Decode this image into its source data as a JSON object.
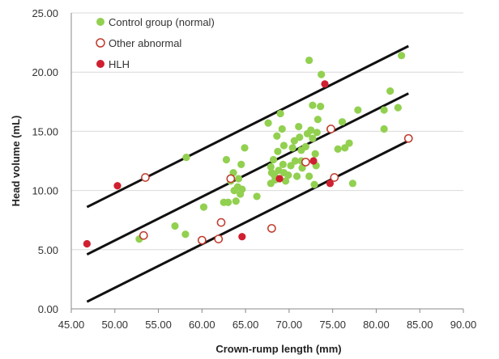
{
  "chart_data": {
    "type": "scatter",
    "title": "",
    "xlabel": "Crown-rump length (mm)",
    "ylabel": "Head volume (mL)",
    "xlim": [
      45,
      90
    ],
    "ylim": [
      0,
      25
    ],
    "x_ticks": [
      "45.00",
      "50.00",
      "55.00",
      "60.00",
      "65.00",
      "70.00",
      "75.00",
      "80.00",
      "85.00",
      "90.00"
    ],
    "y_ticks": [
      "0.00",
      "5.00",
      "10.00",
      "15.00",
      "20.00",
      "25.00"
    ],
    "grid": "horizontal",
    "legend_position": "top-left",
    "series": [
      {
        "name": "Control group (normal)",
        "marker": "filled-circle",
        "color": "#92d050",
        "points": [
          [
            52.8,
            5.9
          ],
          [
            56.9,
            7.0
          ],
          [
            58.1,
            6.3
          ],
          [
            58.2,
            12.8
          ],
          [
            60.2,
            8.6
          ],
          [
            62.5,
            9.0
          ],
          [
            62.8,
            12.6
          ],
          [
            63.0,
            9.0
          ],
          [
            63.3,
            10.8
          ],
          [
            63.6,
            11.5
          ],
          [
            63.7,
            10.0
          ],
          [
            63.9,
            9.1
          ],
          [
            64.1,
            10.3
          ],
          [
            64.2,
            11.0
          ],
          [
            64.4,
            9.7
          ],
          [
            64.6,
            10.1
          ],
          [
            64.5,
            12.2
          ],
          [
            64.9,
            13.6
          ],
          [
            66.3,
            9.5
          ],
          [
            67.6,
            15.7
          ],
          [
            67.9,
            12.0
          ],
          [
            67.9,
            10.6
          ],
          [
            68.0,
            11.5
          ],
          [
            68.2,
            12.6
          ],
          [
            68.3,
            11.3
          ],
          [
            68.4,
            10.9
          ],
          [
            68.6,
            14.6
          ],
          [
            68.7,
            13.3
          ],
          [
            68.8,
            11.7
          ],
          [
            69.0,
            16.5
          ],
          [
            69.2,
            15.2
          ],
          [
            69.3,
            12.2
          ],
          [
            69.4,
            11.5
          ],
          [
            69.4,
            13.8
          ],
          [
            69.6,
            10.8
          ],
          [
            69.9,
            11.3
          ],
          [
            70.2,
            12.1
          ],
          [
            70.4,
            13.6
          ],
          [
            70.6,
            14.2
          ],
          [
            70.7,
            12.5
          ],
          [
            70.9,
            11.2
          ],
          [
            71.1,
            15.4
          ],
          [
            71.2,
            14.5
          ],
          [
            71.4,
            13.4
          ],
          [
            71.4,
            12.5
          ],
          [
            71.5,
            11.9
          ],
          [
            71.9,
            13.7
          ],
          [
            72.1,
            14.8
          ],
          [
            72.3,
            21.0
          ],
          [
            72.3,
            11.2
          ],
          [
            72.5,
            15.1
          ],
          [
            72.7,
            14.4
          ],
          [
            72.7,
            17.2
          ],
          [
            72.9,
            10.5
          ],
          [
            73.0,
            13.1
          ],
          [
            73.1,
            12.1
          ],
          [
            73.2,
            14.9
          ],
          [
            73.3,
            16.0
          ],
          [
            73.6,
            17.1
          ],
          [
            73.7,
            19.8
          ],
          [
            74.7,
            15.2
          ],
          [
            75.6,
            13.5
          ],
          [
            76.1,
            15.8
          ],
          [
            76.4,
            13.6
          ],
          [
            76.9,
            14.0
          ],
          [
            77.3,
            10.6
          ],
          [
            77.9,
            16.8
          ],
          [
            80.9,
            15.2
          ],
          [
            80.9,
            16.8
          ],
          [
            81.6,
            18.4
          ],
          [
            82.5,
            17.0
          ],
          [
            82.9,
            21.4
          ]
        ]
      },
      {
        "name": "Other abnormal",
        "marker": "open-circle",
        "color": "#c0392b",
        "points": [
          [
            53.3,
            6.2
          ],
          [
            53.5,
            11.1
          ],
          [
            60.0,
            5.8
          ],
          [
            61.9,
            5.9
          ],
          [
            62.2,
            7.3
          ],
          [
            63.3,
            11.0
          ],
          [
            68.0,
            6.8
          ],
          [
            71.9,
            12.4
          ],
          [
            74.8,
            15.2
          ],
          [
            75.2,
            11.1
          ],
          [
            83.7,
            14.4
          ]
        ]
      },
      {
        "name": "HLH",
        "marker": "filled-circle",
        "color": "#d02030",
        "points": [
          [
            46.8,
            5.5
          ],
          [
            50.3,
            10.4
          ],
          [
            64.6,
            6.1
          ],
          [
            68.9,
            11.0
          ],
          [
            72.8,
            12.5
          ],
          [
            74.1,
            19.0
          ],
          [
            74.7,
            10.6
          ]
        ]
      }
    ],
    "lines": [
      {
        "x": [
          46.8,
          83.7
        ],
        "y": [
          8.6,
          22.2
        ]
      },
      {
        "x": [
          46.8,
          83.7
        ],
        "y": [
          4.6,
          18.2
        ]
      },
      {
        "x": [
          46.8,
          83.7
        ],
        "y": [
          0.6,
          14.2
        ]
      }
    ]
  }
}
